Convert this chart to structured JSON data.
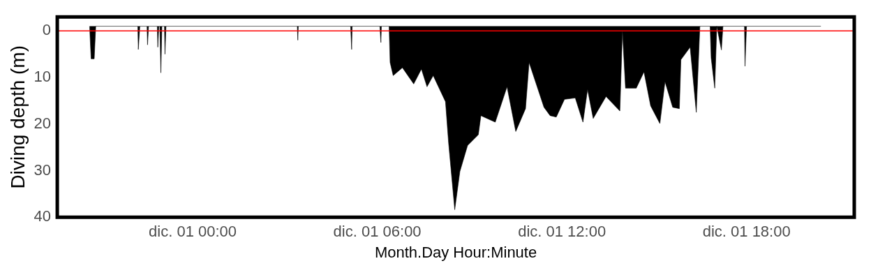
{
  "chart_data": {
    "type": "area",
    "xlabel": "Month.Day Hour:Minute",
    "ylabel": "Diving depth (m)",
    "x": [
      "--11-30T20:39",
      "--11-30T20:42",
      "--11-30T20:48",
      "--11-30T20:51",
      "--11-30T22:13",
      "--11-30T22:14",
      "--11-30T22:17",
      "--11-30T22:31",
      "--11-30T22:32",
      "--11-30T22:34",
      "--11-30T22:51",
      "--11-30T22:52",
      "--11-30T22:54",
      "--11-30T22:56",
      "--11-30T22:58",
      "--11-30T23:00",
      "--11-30T23:05",
      "--11-30T23:06",
      "--11-30T23:08",
      "--12-01T03:24",
      "--12-01T03:25",
      "--12-01T03:26",
      "--12-01T05:08",
      "--12-01T05:10",
      "--12-01T05:11",
      "--12-01T06:05",
      "--12-01T06:07",
      "--12-01T06:08",
      "--12-01T06:23",
      "--12-01T06:25",
      "--12-01T06:31",
      "--12-01T06:49",
      "--12-01T07:11",
      "--12-01T07:26",
      "--12-01T07:37",
      "--12-01T07:49",
      "--12-01T08:13",
      "--12-01T08:19",
      "--12-01T08:31",
      "--12-01T08:41",
      "--12-01T08:56",
      "--12-01T09:17",
      "--12-01T09:22",
      "--12-01T09:50",
      "--12-01T10:13",
      "--12-01T10:30",
      "--12-01T10:49",
      "--12-01T10:56",
      "--12-01T11:25",
      "--12-01T11:37",
      "--12-01T11:49",
      "--12-01T12:05",
      "--12-01T12:26",
      "--12-01T12:41",
      "--12-01T12:50",
      "--12-01T13:01",
      "--12-01T13:26",
      "--12-01T13:53",
      "--12-01T13:58",
      "--12-01T14:04",
      "--12-01T14:25",
      "--12-01T14:40",
      "--12-01T14:53",
      "--12-01T15:11",
      "--12-01T15:21",
      "--12-01T15:36",
      "--12-01T15:49",
      "--12-01T15:52",
      "--12-01T16:10",
      "--12-01T16:22",
      "--12-01T16:29",
      "--12-01T16:49",
      "--12-01T16:51",
      "--12-01T16:58",
      "--12-01T17:02",
      "--12-01T17:11",
      "--12-01T17:14",
      "--12-01T17:56",
      "--12-01T17:57",
      "--12-01T18:00",
      "--12-01T20:25"
    ],
    "series": [
      {
        "color": "#000000",
        "values": [
          -1,
          6,
          6,
          -1,
          -1,
          4,
          -1,
          -1,
          3,
          -1,
          -1,
          3.5,
          -1,
          -1,
          9,
          -1,
          -1,
          5,
          -1,
          -1,
          2,
          -1,
          -1,
          4,
          -1,
          -1,
          2.5,
          -1,
          -1,
          6.8,
          9.6,
          7.9,
          11.4,
          8.2,
          12,
          9.6,
          15.2,
          24,
          38.4,
          30.2,
          24.6,
          22.3,
          18.2,
          19.6,
          12,
          21.6,
          16.7,
          6.8,
          16.4,
          18.2,
          18.5,
          14.7,
          14.4,
          19.6,
          12.6,
          18.8,
          14.1,
          17.2,
          0,
          12.3,
          12.3,
          8.8,
          16.1,
          19.9,
          10.9,
          16.4,
          16.7,
          6.2,
          3.5,
          17.5,
          -1,
          -1,
          5.8,
          12.3,
          -1,
          4.1,
          -1,
          -1,
          7.6,
          -1,
          -1
        ]
      }
    ],
    "xlim": [
      "--11-30T19:36",
      "--12-01T21:30"
    ],
    "xticks": [
      {
        "value": "--12-01T00:00",
        "label": "dic. 01 00:00"
      },
      {
        "value": "--12-01T06:00",
        "label": "dic. 01 06:00"
      },
      {
        "value": "--12-01T12:00",
        "label": "dic. 01 12:00"
      },
      {
        "value": "--12-01T18:00",
        "label": "dic. 01 18:00"
      }
    ],
    "ylim": [
      40,
      -3
    ],
    "yticks": [
      0,
      10,
      20,
      30,
      40
    ],
    "ref_lines": [
      {
        "axis": "y",
        "value": 0,
        "color": "#ff0000"
      }
    ],
    "grid": false,
    "legend": false,
    "marker": "none",
    "line_style": "solid"
  }
}
